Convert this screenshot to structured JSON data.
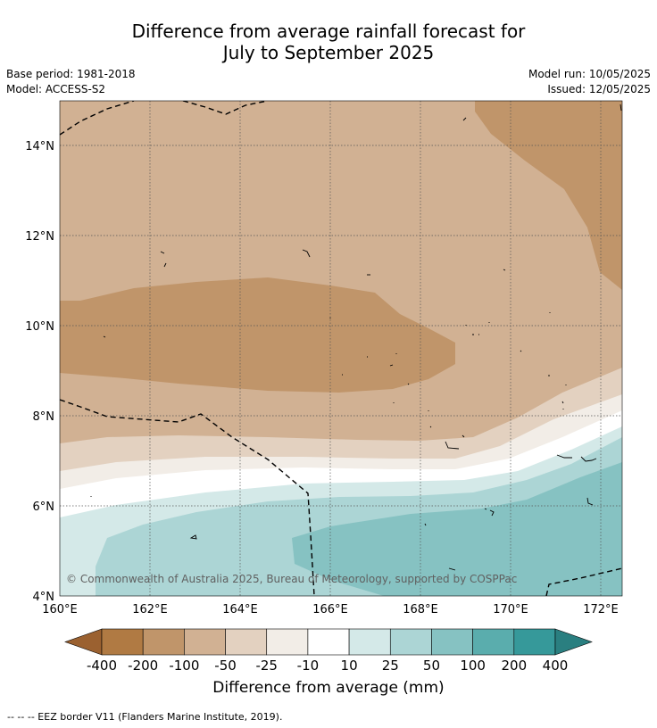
{
  "title_line1": "Difference from average rainfall forecast for",
  "title_line2": "July to September 2025",
  "meta": {
    "base_period": "Base period: 1981-2018",
    "model": "Model: ACCESS-S2",
    "model_run": "Model run: 10/05/2025",
    "issued": "Issued: 12/05/2025"
  },
  "map": {
    "lat_labels": [
      "14°N",
      "12°N",
      "10°N",
      "8°N",
      "6°N",
      "4°N"
    ],
    "lon_labels": [
      "160°E",
      "162°E",
      "164°E",
      "166°E",
      "168°E",
      "170°E",
      "172°E"
    ],
    "copyright": "© Commonwealth of Australia 2025, Bureau of Meteorology, supported by COSPPac"
  },
  "colorbar": {
    "title": "Difference from average (mm)",
    "labels": [
      "-400",
      "-200",
      "-100",
      "-50",
      "-25",
      "-10",
      "10",
      "25",
      "50",
      "100",
      "200",
      "400"
    ],
    "colors": [
      "#9b6130",
      "#b07a43",
      "#c0956a",
      "#d1b193",
      "#e3d1c0",
      "#f2ede7",
      "#ffffff",
      "#d4e9e8",
      "#acd5d5",
      "#86c2c2",
      "#5aadad",
      "#36999a",
      "#2a7f80"
    ]
  },
  "footnote": "-- -- -- EEZ border V11 (Flanders Marine Institute, 2019)."
}
